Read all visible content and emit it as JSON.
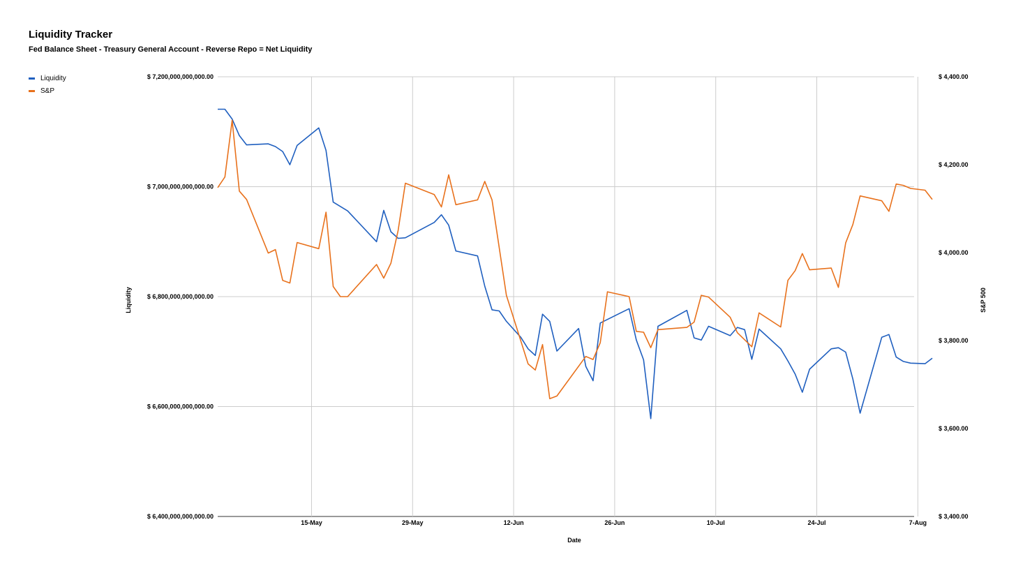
{
  "chart_data": {
    "type": "line",
    "title": "Liquidity Tracker",
    "subtitle": "Fed Balance Sheet - Treasury General Account - Reverse Repo = Net Liquidity",
    "xlabel": "Date",
    "ylabel_left": "Liquidity",
    "ylabel_right": "S&P 500",
    "legend_position": "top-left",
    "grid": true,
    "x_ticks": [
      "15-May",
      "29-May",
      "12-Jun",
      "26-Jun",
      "10-Jul",
      "24-Jul",
      "7-Aug"
    ],
    "y_left_ticks": [
      "$ 7,200,000,000,000.00",
      "$ 7,000,000,000,000.00",
      "$ 6,800,000,000,000.00",
      "$ 6,600,000,000,000.00",
      "$ 6,400,000,000,000.00"
    ],
    "y_right_ticks": [
      "$ 4,400.00",
      "$ 4,200.00",
      "$ 4,000.00",
      "$ 3,800.00",
      "$ 3,600.00",
      "$ 3,400.00"
    ],
    "y_left_range": [
      6400000000000,
      7200000000000
    ],
    "y_right_range": [
      3400,
      4400
    ],
    "x_range": [
      "2023-05-02",
      "2023-08-09"
    ],
    "series": [
      {
        "name": "Liquidity",
        "axis": "left",
        "color": "#1f5fbf",
        "points": [
          [
            "2023-05-02",
            7141000000000
          ],
          [
            "2023-05-03",
            7141000000000
          ],
          [
            "2023-05-04",
            7123000000000
          ],
          [
            "2023-05-05",
            7093000000000
          ],
          [
            "2023-05-06",
            7076000000000
          ],
          [
            "2023-05-09",
            7078000000000
          ],
          [
            "2023-05-10",
            7073000000000
          ],
          [
            "2023-05-11",
            7064000000000
          ],
          [
            "2023-05-12",
            7040000000000
          ],
          [
            "2023-05-13",
            7075000000000
          ],
          [
            "2023-05-16",
            7107000000000
          ],
          [
            "2023-05-17",
            7066000000000
          ],
          [
            "2023-05-18",
            6972000000000
          ],
          [
            "2023-05-20",
            6956000000000
          ],
          [
            "2023-05-24",
            6900000000000
          ],
          [
            "2023-05-25",
            6957000000000
          ],
          [
            "2023-05-26",
            6918000000000
          ],
          [
            "2023-05-27",
            6906000000000
          ],
          [
            "2023-05-28",
            6907000000000
          ],
          [
            "2023-06-01",
            6935000000000
          ],
          [
            "2023-06-02",
            6949000000000
          ],
          [
            "2023-06-03",
            6930000000000
          ],
          [
            "2023-06-04",
            6883000000000
          ],
          [
            "2023-06-07",
            6874000000000
          ],
          [
            "2023-06-08",
            6819000000000
          ],
          [
            "2023-06-09",
            6776000000000
          ],
          [
            "2023-06-10",
            6774000000000
          ],
          [
            "2023-06-11",
            6755000000000
          ],
          [
            "2023-06-13",
            6726000000000
          ],
          [
            "2023-06-14",
            6705000000000
          ],
          [
            "2023-06-15",
            6693000000000
          ],
          [
            "2023-06-16",
            6768000000000
          ],
          [
            "2023-06-17",
            6755000000000
          ],
          [
            "2023-06-18",
            6701000000000
          ],
          [
            "2023-06-21",
            6742000000000
          ],
          [
            "2023-06-22",
            6673000000000
          ],
          [
            "2023-06-23",
            6647000000000
          ],
          [
            "2023-06-24",
            6752000000000
          ],
          [
            "2023-06-28",
            6778000000000
          ],
          [
            "2023-06-29",
            6721000000000
          ],
          [
            "2023-06-30",
            6685000000000
          ],
          [
            "2023-07-01",
            6578000000000
          ],
          [
            "2023-07-02",
            6746000000000
          ],
          [
            "2023-07-06",
            6775000000000
          ],
          [
            "2023-07-07",
            6725000000000
          ],
          [
            "2023-07-08",
            6721000000000
          ],
          [
            "2023-07-09",
            6746000000000
          ],
          [
            "2023-07-12",
            6729000000000
          ],
          [
            "2023-07-13",
            6744000000000
          ],
          [
            "2023-07-14",
            6740000000000
          ],
          [
            "2023-07-15",
            6686000000000
          ],
          [
            "2023-07-16",
            6741000000000
          ],
          [
            "2023-07-19",
            6705000000000
          ],
          [
            "2023-07-20",
            6683000000000
          ],
          [
            "2023-07-21",
            6659000000000
          ],
          [
            "2023-07-22",
            6626000000000
          ],
          [
            "2023-07-23",
            6668000000000
          ],
          [
            "2023-07-26",
            6705000000000
          ],
          [
            "2023-07-27",
            6707000000000
          ],
          [
            "2023-07-28",
            6699000000000
          ],
          [
            "2023-07-29",
            6650000000000
          ],
          [
            "2023-07-30",
            6588000000000
          ],
          [
            "2023-08-02",
            6726000000000
          ],
          [
            "2023-08-03",
            6731000000000
          ],
          [
            "2023-08-04",
            6690000000000
          ],
          [
            "2023-08-05",
            6682000000000
          ],
          [
            "2023-08-06",
            6679000000000
          ],
          [
            "2023-08-08",
            6678000000000
          ],
          [
            "2023-08-09",
            6688000000000
          ]
        ]
      },
      {
        "name": "S&P",
        "axis": "right",
        "color": "#e8711c",
        "points": [
          [
            "2023-05-02",
            4148
          ],
          [
            "2023-05-03",
            4172
          ],
          [
            "2023-05-04",
            4301
          ],
          [
            "2023-05-05",
            4140
          ],
          [
            "2023-05-06",
            4121
          ],
          [
            "2023-05-09",
            3999
          ],
          [
            "2023-05-10",
            4007
          ],
          [
            "2023-05-11",
            3937
          ],
          [
            "2023-05-12",
            3931
          ],
          [
            "2023-05-13",
            4023
          ],
          [
            "2023-05-16",
            4009
          ],
          [
            "2023-05-17",
            4092
          ],
          [
            "2023-05-18",
            3923
          ],
          [
            "2023-05-19",
            3900
          ],
          [
            "2023-05-20",
            3900
          ],
          [
            "2023-05-24",
            3973
          ],
          [
            "2023-05-25",
            3942
          ],
          [
            "2023-05-26",
            3976
          ],
          [
            "2023-05-27",
            4051
          ],
          [
            "2023-05-28",
            4158
          ],
          [
            "2023-06-01",
            4132
          ],
          [
            "2023-06-02",
            4104
          ],
          [
            "2023-06-03",
            4177
          ],
          [
            "2023-06-04",
            4109
          ],
          [
            "2023-06-07",
            4120
          ],
          [
            "2023-06-08",
            4162
          ],
          [
            "2023-06-09",
            4120
          ],
          [
            "2023-06-11",
            3903
          ],
          [
            "2023-06-14",
            3747
          ],
          [
            "2023-06-15",
            3733
          ],
          [
            "2023-06-16",
            3791
          ],
          [
            "2023-06-17",
            3668
          ],
          [
            "2023-06-18",
            3674
          ],
          [
            "2023-06-22",
            3764
          ],
          [
            "2023-06-23",
            3757
          ],
          [
            "2023-06-24",
            3795
          ],
          [
            "2023-06-25",
            3911
          ],
          [
            "2023-06-28",
            3900
          ],
          [
            "2023-06-29",
            3821
          ],
          [
            "2023-06-30",
            3819
          ],
          [
            "2023-07-01",
            3784
          ],
          [
            "2023-07-02",
            3825
          ],
          [
            "2023-07-06",
            3830
          ],
          [
            "2023-07-07",
            3842
          ],
          [
            "2023-07-08",
            3903
          ],
          [
            "2023-07-09",
            3899
          ],
          [
            "2023-07-12",
            3853
          ],
          [
            "2023-07-13",
            3818
          ],
          [
            "2023-07-15",
            3786
          ],
          [
            "2023-07-16",
            3863
          ],
          [
            "2023-07-19",
            3831
          ],
          [
            "2023-07-20",
            3937
          ],
          [
            "2023-07-21",
            3959
          ],
          [
            "2023-07-22",
            3998
          ],
          [
            "2023-07-23",
            3961
          ],
          [
            "2023-07-26",
            3965
          ],
          [
            "2023-07-27",
            3921
          ],
          [
            "2023-07-28",
            4022
          ],
          [
            "2023-07-29",
            4064
          ],
          [
            "2023-07-30",
            4129
          ],
          [
            "2023-08-02",
            4118
          ],
          [
            "2023-08-03",
            4094
          ],
          [
            "2023-08-04",
            4156
          ],
          [
            "2023-08-05",
            4153
          ],
          [
            "2023-08-06",
            4146
          ],
          [
            "2023-08-08",
            4142
          ],
          [
            "2023-08-09",
            4121
          ]
        ]
      }
    ]
  }
}
